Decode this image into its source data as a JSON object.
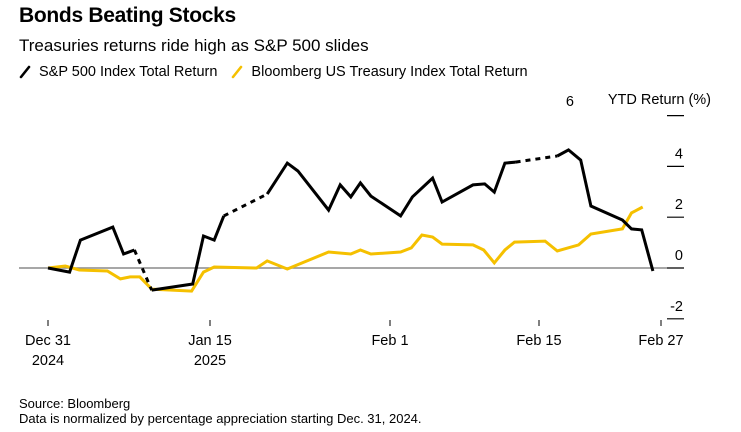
{
  "chart_data": {
    "type": "line",
    "title": "Bonds Beating Stocks",
    "subtitle": "Treasuries returns ride high as S&P 500 slides",
    "xlabel": "",
    "ylabel": "YTD Return (%)",
    "ylim": [
      -2,
      6
    ],
    "yticks": [
      6,
      4,
      2,
      0,
      -2
    ],
    "x_unit": "days since Dec 31, 2024",
    "xticks": [
      {
        "day": 0,
        "label": "Dec 31",
        "sublabel": "2024"
      },
      {
        "day": 15,
        "label": "Jan 15",
        "sublabel": "2025"
      },
      {
        "day": 32,
        "label": "Feb 1",
        "sublabel": ""
      },
      {
        "day": 46,
        "label": "Feb 15",
        "sublabel": ""
      },
      {
        "day": 58,
        "label": "Feb 27",
        "sublabel": ""
      }
    ],
    "grid": false,
    "legend_position": "top-left",
    "series": [
      {
        "name": "S&P 500 Index Total Return",
        "color": "#000000",
        "dashed_segments_before_points": [
          6,
          11,
          28
        ],
        "points": [
          [
            0,
            0.0
          ],
          [
            2,
            -0.16
          ],
          [
            3,
            1.1
          ],
          [
            6,
            1.61
          ],
          [
            7,
            0.55
          ],
          [
            8,
            0.71
          ],
          [
            9.6,
            -0.87
          ],
          [
            13.4,
            -0.63
          ],
          [
            14.4,
            1.26
          ],
          [
            15.4,
            1.1
          ],
          [
            16.3,
            2.05
          ],
          [
            20.4,
            2.91
          ],
          [
            22.3,
            4.13
          ],
          [
            23.3,
            3.82
          ],
          [
            26.2,
            2.28
          ],
          [
            27.3,
            3.27
          ],
          [
            28.3,
            2.8
          ],
          [
            29.2,
            3.35
          ],
          [
            30.2,
            2.83
          ],
          [
            33.0,
            2.05
          ],
          [
            34.1,
            2.8
          ],
          [
            36.0,
            3.54
          ],
          [
            36.9,
            2.6
          ],
          [
            39.8,
            3.27
          ],
          [
            40.9,
            3.31
          ],
          [
            41.8,
            2.99
          ],
          [
            42.8,
            4.13
          ],
          [
            43.8,
            4.17
          ],
          [
            47.8,
            4.41
          ],
          [
            48.9,
            4.65
          ],
          [
            50.1,
            4.25
          ],
          [
            51.1,
            2.44
          ],
          [
            54.2,
            1.89
          ],
          [
            55.1,
            1.54
          ],
          [
            56.1,
            1.5
          ],
          [
            57.2,
            -0.12
          ]
        ]
      },
      {
        "name": "Bloomberg US Treasury Index Total Return",
        "color": "#f5c000",
        "dashed_segments_before_points": [],
        "points": [
          [
            0,
            0.0
          ],
          [
            1.6,
            0.08
          ],
          [
            2.9,
            -0.08
          ],
          [
            5.5,
            -0.12
          ],
          [
            6.7,
            -0.43
          ],
          [
            7.6,
            -0.35
          ],
          [
            8.5,
            -0.35
          ],
          [
            9.6,
            -0.83
          ],
          [
            13.3,
            -0.91
          ],
          [
            14.4,
            -0.16
          ],
          [
            15.4,
            0.04
          ],
          [
            19.4,
            0.0
          ],
          [
            20.4,
            0.28
          ],
          [
            22.3,
            -0.04
          ],
          [
            26.2,
            0.63
          ],
          [
            28.3,
            0.55
          ],
          [
            29.2,
            0.71
          ],
          [
            30.2,
            0.55
          ],
          [
            33.0,
            0.63
          ],
          [
            34.0,
            0.79
          ],
          [
            35.0,
            1.3
          ],
          [
            36.0,
            1.22
          ],
          [
            36.9,
            0.94
          ],
          [
            39.8,
            0.91
          ],
          [
            40.8,
            0.71
          ],
          [
            41.8,
            0.2
          ],
          [
            42.8,
            0.71
          ],
          [
            43.7,
            1.02
          ],
          [
            46.6,
            1.06
          ],
          [
            47.8,
            0.67
          ],
          [
            49.9,
            0.91
          ],
          [
            51.1,
            1.34
          ],
          [
            54.2,
            1.54
          ],
          [
            55.1,
            2.17
          ],
          [
            56.2,
            2.4
          ]
        ]
      }
    ],
    "source": "Source: Bloomberg",
    "note": "Data is normalized by percentage appreciation starting Dec. 31, 2024."
  }
}
